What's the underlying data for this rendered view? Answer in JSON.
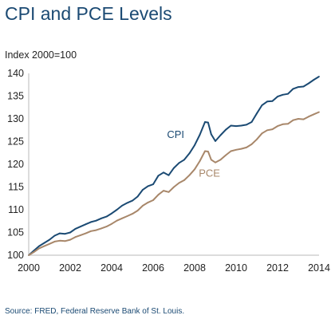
{
  "title": "CPI and PCE Levels",
  "source": "Source: FRED, Federal Reserve Bank of St. Louis.",
  "colors": {
    "cpi": "#1b4a73",
    "pce": "#a8876a",
    "axis": "#b9b9b9",
    "title": "#1b4a73"
  },
  "chart_data": {
    "type": "line",
    "ylabel": "Index 2000=100",
    "xlabel": "",
    "xlim": [
      2000,
      2014
    ],
    "ylim": [
      100,
      140
    ],
    "xticks": [
      2000,
      2002,
      2004,
      2006,
      2008,
      2010,
      2012,
      2014
    ],
    "yticks": [
      100,
      105,
      110,
      115,
      120,
      125,
      130,
      135,
      140
    ],
    "grid": false,
    "series": [
      {
        "name": "CPI",
        "x": [
          2000.0,
          2000.25,
          2000.5,
          2000.75,
          2001.0,
          2001.25,
          2001.5,
          2001.75,
          2002.0,
          2002.25,
          2002.5,
          2002.75,
          2003.0,
          2003.25,
          2003.5,
          2003.75,
          2004.0,
          2004.25,
          2004.5,
          2004.75,
          2005.0,
          2005.25,
          2005.5,
          2005.75,
          2006.0,
          2006.25,
          2006.5,
          2006.75,
          2007.0,
          2007.25,
          2007.5,
          2007.75,
          2008.0,
          2008.25,
          2008.5,
          2008.65,
          2008.8,
          2009.0,
          2009.25,
          2009.5,
          2009.75,
          2010.0,
          2010.25,
          2010.5,
          2010.75,
          2011.0,
          2011.25,
          2011.5,
          2011.75,
          2012.0,
          2012.25,
          2012.5,
          2012.75,
          2013.0,
          2013.25,
          2013.5,
          2013.75,
          2014.0
        ],
        "values": [
          100.0,
          101.0,
          102.0,
          102.7,
          103.4,
          104.3,
          104.8,
          104.7,
          105.0,
          105.8,
          106.3,
          106.8,
          107.3,
          107.6,
          108.1,
          108.5,
          109.2,
          110.0,
          110.9,
          111.5,
          112.0,
          112.9,
          114.4,
          115.2,
          115.6,
          117.5,
          118.2,
          117.6,
          119.2,
          120.3,
          121.0,
          122.4,
          124.2,
          126.5,
          129.3,
          129.2,
          126.6,
          125.1,
          126.4,
          127.6,
          128.5,
          128.4,
          128.5,
          128.7,
          129.3,
          131.2,
          133.0,
          133.8,
          133.9,
          134.9,
          135.3,
          135.5,
          136.6,
          137.0,
          137.1,
          137.8,
          138.6,
          139.3
        ]
      },
      {
        "name": "PCE",
        "x": [
          2000.0,
          2000.25,
          2000.5,
          2000.75,
          2001.0,
          2001.25,
          2001.5,
          2001.75,
          2002.0,
          2002.25,
          2002.5,
          2002.75,
          2003.0,
          2003.25,
          2003.5,
          2003.75,
          2004.0,
          2004.25,
          2004.5,
          2004.75,
          2005.0,
          2005.25,
          2005.5,
          2005.75,
          2006.0,
          2006.25,
          2006.5,
          2006.75,
          2007.0,
          2007.25,
          2007.5,
          2007.75,
          2008.0,
          2008.25,
          2008.5,
          2008.65,
          2008.8,
          2009.0,
          2009.25,
          2009.5,
          2009.75,
          2010.0,
          2010.25,
          2010.5,
          2010.75,
          2011.0,
          2011.25,
          2011.5,
          2011.75,
          2012.0,
          2012.25,
          2012.5,
          2012.75,
          2013.0,
          2013.25,
          2013.5,
          2013.75,
          2014.0
        ],
        "values": [
          100.0,
          100.7,
          101.5,
          102.0,
          102.5,
          103.0,
          103.2,
          103.1,
          103.4,
          104.0,
          104.4,
          104.8,
          105.3,
          105.5,
          105.9,
          106.3,
          106.9,
          107.6,
          108.1,
          108.6,
          109.1,
          109.8,
          110.9,
          111.6,
          112.1,
          113.3,
          114.2,
          113.9,
          115.0,
          115.9,
          116.5,
          117.6,
          118.9,
          120.7,
          122.9,
          122.8,
          121.0,
          120.4,
          121.0,
          122.0,
          122.9,
          123.2,
          123.4,
          123.7,
          124.4,
          125.5,
          126.8,
          127.5,
          127.7,
          128.4,
          128.8,
          128.9,
          129.7,
          130.0,
          129.9,
          130.5,
          131.0,
          131.5
        ]
      }
    ]
  }
}
